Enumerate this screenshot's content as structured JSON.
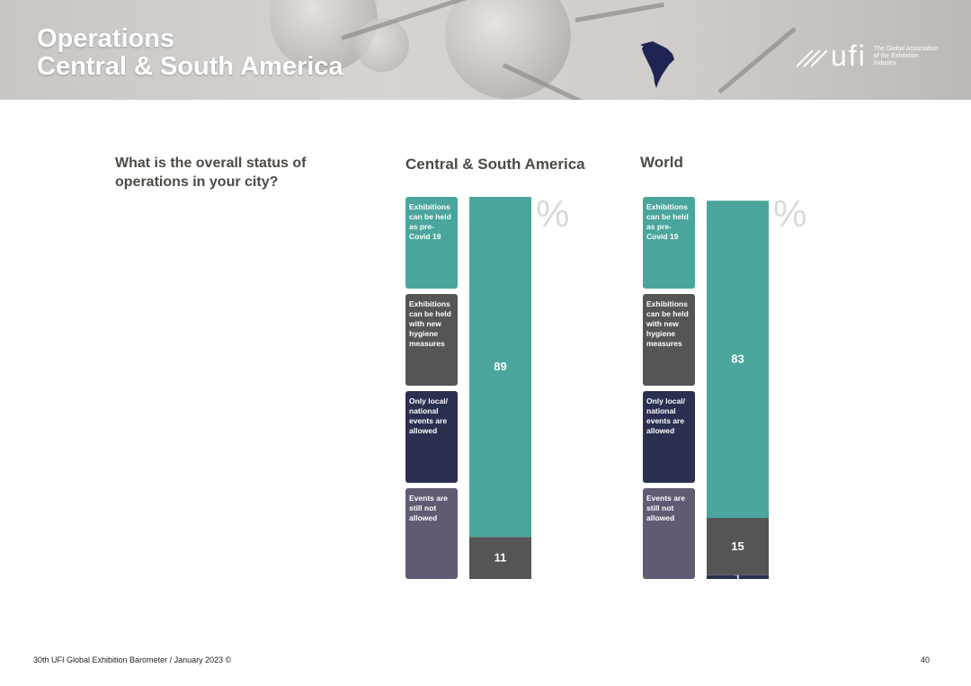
{
  "header": {
    "title_line1": "Operations",
    "title_line2": "Central & South America",
    "logo_word": "ufi",
    "logo_tagline": "The Global Association of the Exhibition Industry"
  },
  "question": "What is the overall status of operations in your city?",
  "legend": [
    {
      "label": "Exhibitions can be held as pre-Covid 19",
      "color": "#4aa69c"
    },
    {
      "label": "Exhibitions can be held with new hygiene measures",
      "color": "#555556"
    },
    {
      "label": "Only local/ national events are allowed",
      "color": "#2b3051"
    },
    {
      "label": "Events are still not allowed",
      "color": "#625a73"
    }
  ],
  "percent_symbol": "%",
  "chart_data": [
    {
      "type": "bar",
      "title": "Central & South America",
      "unit": "%",
      "stacked": true,
      "series": [
        {
          "name": "Exhibitions can be held as pre-Covid 19",
          "value": 89,
          "color": "#4aa69c"
        },
        {
          "name": "Exhibitions can be held with new hygiene measures",
          "value": 11,
          "color": "#555556"
        },
        {
          "name": "Only local/ national events are allowed",
          "value": 0,
          "color": "#2b3051"
        },
        {
          "name": "Events are still not allowed",
          "value": 0,
          "color": "#625a73"
        }
      ],
      "ylim": [
        0,
        100
      ]
    },
    {
      "type": "bar",
      "title": "World",
      "unit": "%",
      "stacked": true,
      "series": [
        {
          "name": "Exhibitions can be held as pre-Covid 19",
          "value": 83,
          "color": "#4aa69c"
        },
        {
          "name": "Exhibitions can be held with new hygiene measures",
          "value": 15,
          "color": "#555556"
        },
        {
          "name": "Only local/ national events are allowed",
          "value": 1,
          "color": "#2b3051"
        },
        {
          "name": "Events are still not allowed",
          "value": 0,
          "color": "#625a73"
        }
      ],
      "ylim": [
        0,
        100
      ]
    }
  ],
  "footer": {
    "text": "30th UFI Global Exhibition Barometer / January 2023 ©",
    "page_number": "40"
  }
}
